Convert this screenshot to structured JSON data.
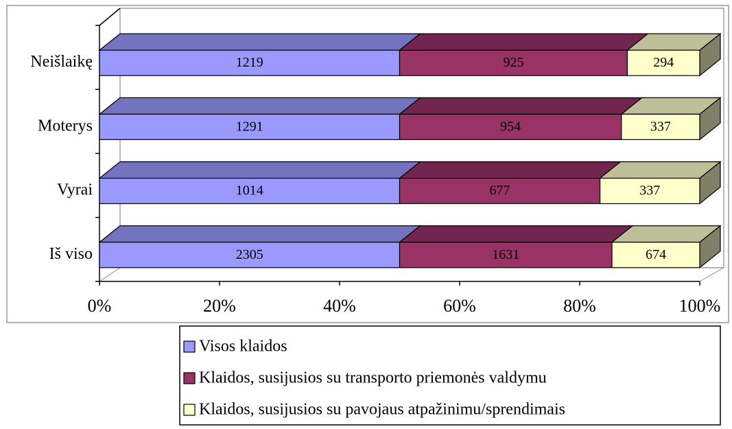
{
  "chart_data": {
    "type": "bar",
    "orientation": "horizontal",
    "stacking": "percent",
    "three_d": true,
    "categories": [
      "Iš viso",
      "Vyrai",
      "Moterys",
      "Neišlaikę"
    ],
    "series": [
      {
        "name": "Visos klaidos",
        "color": "#9999ff",
        "values": [
          2305,
          1014,
          1291,
          1219
        ]
      },
      {
        "name": "Klaidos, susijusios su transporto priemonės valdymu",
        "color": "#993366",
        "values": [
          1631,
          677,
          954,
          925
        ]
      },
      {
        "name": "Klaidos, susijusios su pavojaus atpažinimu/sprendimais",
        "color": "#ffffcc",
        "values": [
          674,
          337,
          337,
          294
        ]
      }
    ],
    "xlim": [
      0,
      100
    ],
    "xticks": [
      {
        "value": 0,
        "label": "0%"
      },
      {
        "value": 20,
        "label": "20%"
      },
      {
        "value": 40,
        "label": "40%"
      },
      {
        "value": 60,
        "label": "60%"
      },
      {
        "value": 80,
        "label": "80%"
      },
      {
        "value": 100,
        "label": "100%"
      }
    ],
    "legend": "bottom"
  }
}
